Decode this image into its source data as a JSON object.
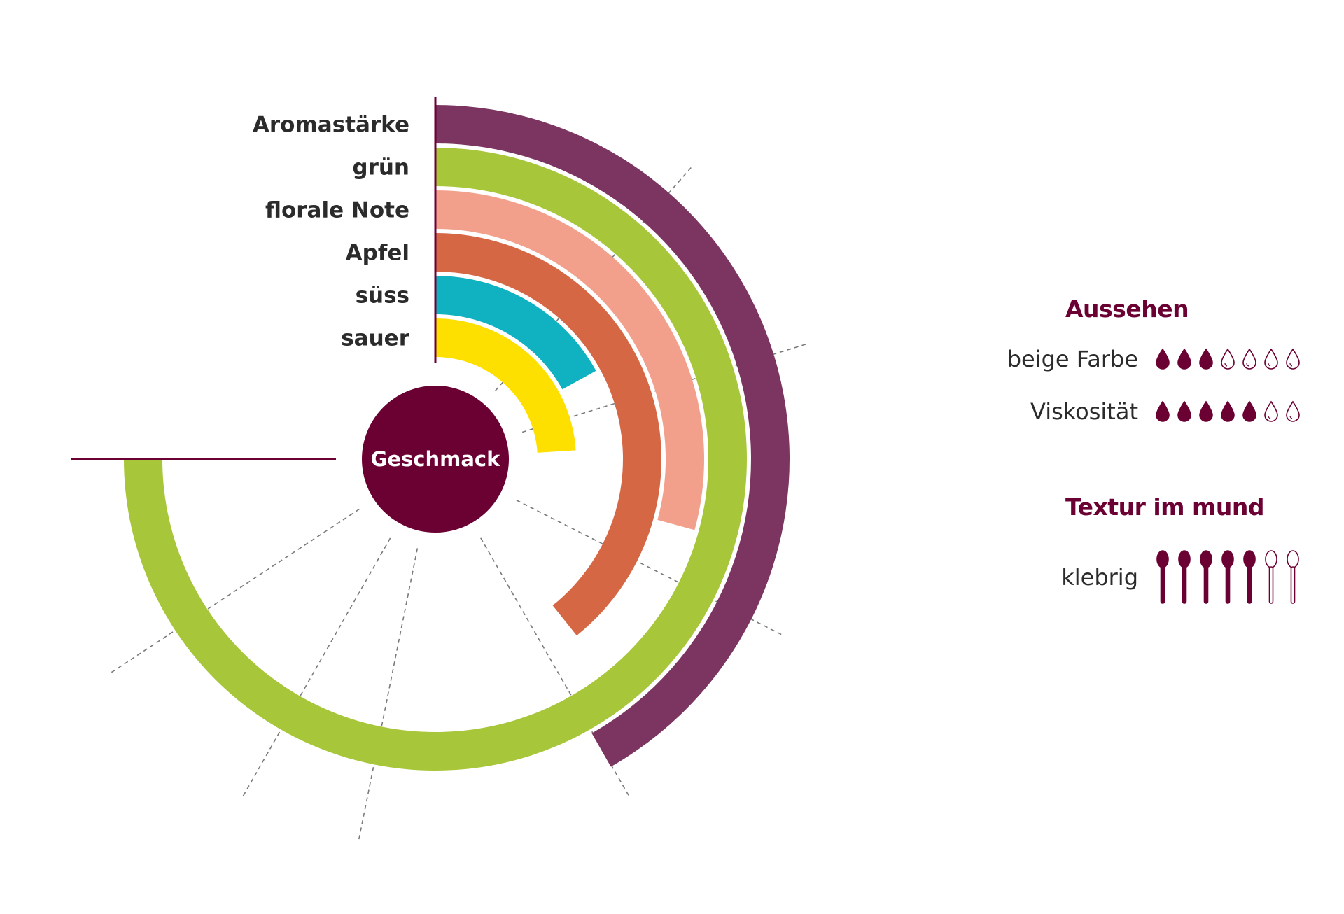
{
  "chart_data": {
    "type": "radial-bar",
    "center_label": "Geschmack",
    "max_value": 4,
    "series": [
      {
        "name": "Aromastärke",
        "value": 1.67,
        "color": "#7b3560"
      },
      {
        "name": "grün",
        "value": 3.0,
        "color": "#a8c63a"
      },
      {
        "name": "florale Note",
        "value": 1.17,
        "color": "#f2a08c"
      },
      {
        "name": "Apfel",
        "value": 1.57,
        "color": "#d66745"
      },
      {
        "name": "süss",
        "value": 0.68,
        "color": "#10b2c2"
      },
      {
        "name": "sauer",
        "value": 0.96,
        "color": "#fde000"
      }
    ]
  },
  "aussehen": {
    "title": "Aussehen",
    "items": [
      {
        "label": "beige Farbe",
        "filled": 3,
        "total": 7,
        "icon": "drop-icon"
      },
      {
        "label": "Viskosität",
        "filled": 5,
        "total": 7,
        "icon": "drop-icon"
      }
    ]
  },
  "textur": {
    "title": "Textur im mund",
    "items": [
      {
        "label": "klebrig",
        "filled": 5,
        "total": 7,
        "icon": "spoon-icon"
      }
    ]
  },
  "colors": {
    "accent": "#6b0033",
    "guide": "#7a7a7a"
  }
}
